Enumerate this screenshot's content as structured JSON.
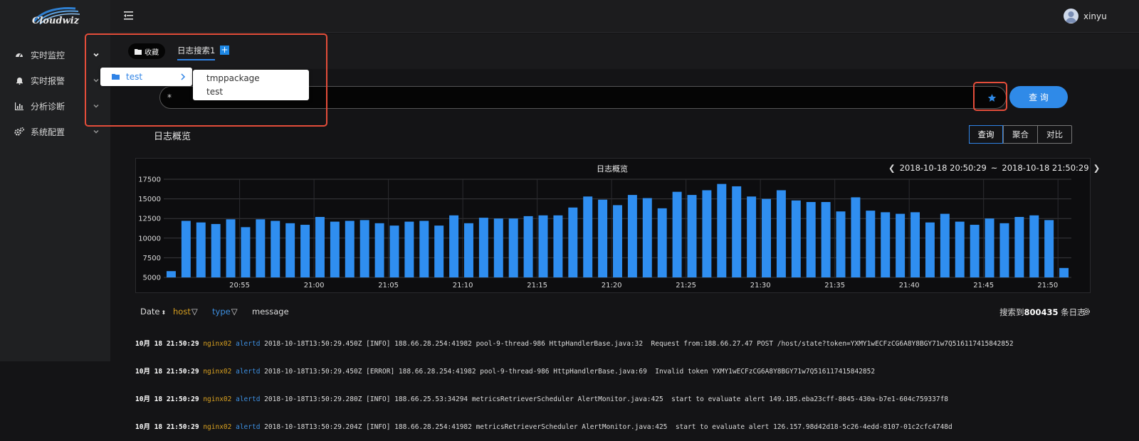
{
  "app": {
    "logo_text": "Cloudwiz"
  },
  "sidebar": {
    "items": [
      {
        "label": "实时监控"
      },
      {
        "label": "实时报警"
      },
      {
        "label": "分析诊断"
      },
      {
        "label": "系统配置"
      }
    ]
  },
  "header": {
    "user": "xinyu"
  },
  "tabs": {
    "favorites_label": "收藏",
    "active_tab": "日志搜索1",
    "add_label": "+"
  },
  "favorites_dropdown": {
    "folder": "test",
    "submenu": [
      "tmppackage",
      "test"
    ]
  },
  "search": {
    "query": "*",
    "button_label": "查 询"
  },
  "overview": {
    "title": "日志概览",
    "modes": [
      "查询",
      "聚合",
      "对比"
    ],
    "active_mode": "查询"
  },
  "chart_data": {
    "type": "bar",
    "title": "日志概览",
    "range_start": "2018-10-18 20:50:29",
    "range_separator": "~",
    "range_end": "2018-10-18 21:50:29",
    "y_ticks": [
      "17500",
      "15000",
      "12500",
      "10000",
      "7500",
      "5000"
    ],
    "ylim": [
      5000,
      17500
    ],
    "x_tick_labels": [
      "20:55",
      "21:00",
      "21:05",
      "21:10",
      "21:15",
      "21:20",
      "21:25",
      "21:30",
      "21:35",
      "21:40",
      "21:45",
      "21:50"
    ],
    "values": [
      5800,
      12200,
      12000,
      11800,
      12400,
      11400,
      12400,
      12200,
      11900,
      11700,
      12700,
      12100,
      12200,
      12300,
      11900,
      11600,
      12100,
      12200,
      11600,
      12900,
      11900,
      12600,
      12500,
      12500,
      12800,
      12900,
      12900,
      13900,
      15300,
      14900,
      14200,
      15500,
      15100,
      13800,
      15900,
      15500,
      16100,
      16900,
      16600,
      15300,
      15000,
      16100,
      14800,
      14600,
      14600,
      13400,
      15200,
      13500,
      13300,
      13100,
      13300,
      12000,
      13100,
      12100,
      11700,
      12500,
      11900,
      12700,
      12900,
      12300,
      6200
    ],
    "grid": true,
    "color": "#2f8ef0"
  },
  "table": {
    "columns": [
      {
        "label": "Date",
        "icon": "sort-icon"
      },
      {
        "label": "host",
        "icon": "filter-icon",
        "color": "#d8a020"
      },
      {
        "label": "type",
        "icon": "filter-icon",
        "color": "#3d8fe0"
      },
      {
        "label": "message"
      }
    ],
    "result_prefix": "搜索到",
    "result_count": "800435",
    "result_suffix": " 条日志",
    "rows": [
      {
        "date": "10月 18 21:50:29",
        "host": "nginx02",
        "type": "alertd",
        "message": "2018-10-18T13:50:29.450Z [INFO] 188.66.28.254:41982 pool-9-thread-986 HttpHandlerBase.java:32  Request from:188.66.27.47 POST /host/state?token=YXMY1wECFzCG6A8Y8BGY71w7Q516117415842852"
      },
      {
        "date": "10月 18 21:50:29",
        "host": "nginx02",
        "type": "alertd",
        "message": "2018-10-18T13:50:29.450Z [ERROR] 188.66.28.254:41982 pool-9-thread-986 HttpHandlerBase.java:69  Invalid token YXMY1wECFzCG6A8Y8BGY71w7Q516117415842852"
      },
      {
        "date": "10月 18 21:50:29",
        "host": "nginx02",
        "type": "alertd",
        "message": "2018-10-18T13:50:29.280Z [INFO] 188.66.25.53:34294 metricsRetrieverScheduler AlertMonitor.java:425  start to evaluate alert 149.185.eba23cff-8045-430a-b7e1-604c759337f8"
      },
      {
        "date": "10月 18 21:50:29",
        "host": "nginx02",
        "type": "alertd",
        "message": "2018-10-18T13:50:29.204Z [INFO] 188.66.28.254:41982 metricsRetrieverScheduler AlertMonitor.java:425  start to evaluate alert 126.157.98d42d18-5c26-4edd-8107-01c2cfc4748d"
      }
    ]
  }
}
